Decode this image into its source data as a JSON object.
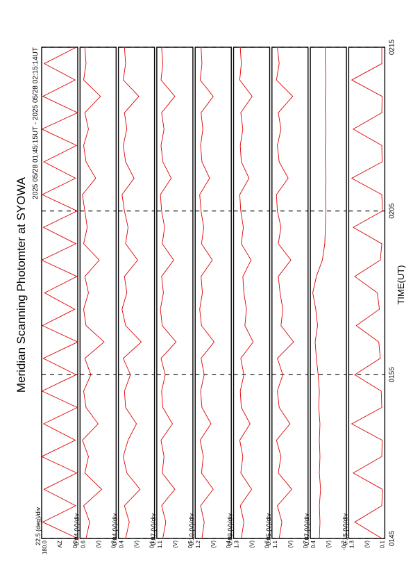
{
  "chart_data": {
    "type": "line",
    "title": "Meridian Scanning Photomter at SYOWA",
    "subtitle": "2025 05/28 01:45:15UT - 2025 05/28 02:15:14UT",
    "xlabel": "TIME(UT)",
    "color": "#e00000",
    "x": [
      0,
      1,
      2,
      3,
      4,
      5,
      6,
      7,
      8,
      9,
      10,
      11,
      12,
      13,
      14,
      15,
      16,
      17,
      18,
      19,
      20,
      21,
      22,
      23,
      24,
      25,
      26,
      27,
      28,
      29,
      30
    ],
    "xlim": [
      0,
      30
    ],
    "xticks": [
      {
        "value": 0,
        "label": "0145"
      },
      {
        "value": 10,
        "label": "0155"
      },
      {
        "value": 20,
        "label": "0205"
      },
      {
        "value": 30,
        "label": "0215"
      }
    ],
    "panels": [
      {
        "scale": "22.5 (deg)/div",
        "ylabel": "AZ",
        "ylim": [
          0,
          180
        ],
        "yticks": [
          {
            "value": 0,
            "label": "0.0"
          },
          {
            "value": 180,
            "label": "180.0"
          }
        ],
        "values": [
          0,
          175,
          10,
          168,
          5,
          180,
          12,
          170,
          2,
          178,
          8,
          172,
          0,
          176,
          15,
          165,
          4,
          180,
          9,
          171,
          3,
          177,
          11,
          169,
          6,
          179,
          1,
          174,
          13,
          167,
          7
        ]
      },
      {
        "scale": "0.04 (V)/div",
        "ylabel": "(V)",
        "ylim": [
          0.3,
          0.6
        ],
        "yticks": [
          0.3,
          0.6
        ],
        "values": [
          0.55,
          0.52,
          0.57,
          0.42,
          0.56,
          0.53,
          0.58,
          0.45,
          0.55,
          0.57,
          0.51,
          0.56,
          0.4,
          0.55,
          0.57,
          0.53,
          0.56,
          0.44,
          0.57,
          0.54,
          0.56,
          0.58,
          0.47,
          0.55,
          0.57,
          0.53,
          0.56,
          0.43,
          0.57,
          0.55,
          0.56
        ]
      },
      {
        "scale": "0.04 (V)/div",
        "ylabel": "(V)",
        "ylim": [
          0.1,
          0.4
        ],
        "yticks": [
          0.1,
          0.4
        ],
        "values": [
          0.34,
          0.31,
          0.35,
          0.22,
          0.33,
          0.36,
          0.32,
          0.25,
          0.34,
          0.35,
          0.3,
          0.36,
          0.21,
          0.34,
          0.37,
          0.33,
          0.35,
          0.24,
          0.34,
          0.32,
          0.35,
          0.37,
          0.27,
          0.34,
          0.36,
          0.33,
          0.35,
          0.23,
          0.36,
          0.34,
          0.35
        ]
      },
      {
        "scale": "0.07 (V)/div",
        "ylabel": "(V)",
        "ylim": [
          0.5,
          1.1
        ],
        "yticks": [
          0.5,
          1.1
        ],
        "values": [
          1.0,
          0.95,
          1.02,
          0.8,
          1.01,
          0.98,
          1.03,
          0.84,
          1.0,
          1.02,
          0.96,
          1.03,
          0.78,
          1.01,
          1.04,
          0.99,
          1.02,
          0.82,
          1.01,
          0.97,
          1.02,
          1.04,
          0.86,
          1.0,
          1.03,
          0.98,
          1.02,
          0.8,
          1.03,
          1.0,
          1.02
        ]
      },
      {
        "scale": "0.10 (V)/div",
        "ylabel": "(V)",
        "ylim": [
          0.4,
          1.2
        ],
        "yticks": [
          0.4,
          1.2
        ],
        "values": [
          1.05,
          1.0,
          1.08,
          0.8,
          1.06,
          1.02,
          1.09,
          0.85,
          1.05,
          1.08,
          1.0,
          1.07,
          0.78,
          1.06,
          1.1,
          1.04,
          1.07,
          0.82,
          1.06,
          1.01,
          1.07,
          1.1,
          0.88,
          1.05,
          1.08,
          1.03,
          1.07,
          0.8,
          1.09,
          1.05,
          1.07
        ]
      },
      {
        "scale": "0.09 (V)/div",
        "ylabel": "(V)",
        "ylim": [
          0.6,
          1.3
        ],
        "yticks": [
          0.6,
          1.3
        ],
        "values": [
          1.15,
          1.1,
          1.17,
          0.95,
          1.16,
          1.12,
          1.18,
          0.98,
          1.15,
          1.17,
          1.1,
          1.16,
          0.92,
          1.08,
          1.05,
          1.1,
          1.12,
          0.96,
          1.15,
          1.11,
          1.16,
          1.18,
          1.0,
          1.15,
          1.17,
          1.12,
          1.16,
          0.94,
          1.18,
          1.15,
          1.17
        ]
      },
      {
        "scale": "0.05 (V)/div",
        "ylabel": "(V)",
        "ylim": [
          0.7,
          1.1
        ],
        "yticks": [
          0.7,
          1.1
        ],
        "values": [
          1.02,
          0.99,
          1.04,
          0.88,
          1.03,
          1.0,
          1.05,
          0.9,
          1.02,
          1.04,
          0.98,
          1.04,
          0.86,
          1.0,
          0.98,
          1.01,
          1.03,
          0.89,
          1.03,
          1.0,
          1.04,
          1.05,
          0.92,
          1.02,
          1.04,
          1.0,
          1.03,
          0.87,
          1.05,
          1.02,
          1.04
        ]
      },
      {
        "scale": "0.07 (V)/div",
        "ylabel": "(V)",
        "ylim": [
          -0.2,
          0.4
        ],
        "yticks": [
          -0.2,
          0.4
        ],
        "values": [
          0.25,
          0.24,
          0.25,
          0.23,
          0.25,
          0.24,
          0.25,
          0.24,
          0.26,
          0.25,
          0.27,
          0.3,
          0.32,
          0.28,
          0.31,
          0.36,
          0.3,
          0.2,
          0.16,
          0.15,
          0.14,
          0.15,
          0.14,
          0.15,
          0.15,
          0.14,
          0.15,
          0.15,
          0.14,
          0.15,
          0.15
        ]
      },
      {
        "scale": "0.15 (V)/div",
        "ylabel": "(V)",
        "ylim": [
          0.1,
          1.3
        ],
        "yticks": [
          0.1,
          1.3
        ],
        "values": [
          0.2,
          1.1,
          0.2,
          0.18,
          1.15,
          0.2,
          0.19,
          1.2,
          0.2,
          0.22,
          1.1,
          0.25,
          0.3,
          1.05,
          0.28,
          0.35,
          1.1,
          0.25,
          0.2,
          1.15,
          0.18,
          0.2,
          1.2,
          0.19,
          0.2,
          1.15,
          0.2,
          0.19,
          1.2,
          0.2,
          0.2
        ]
      }
    ]
  }
}
